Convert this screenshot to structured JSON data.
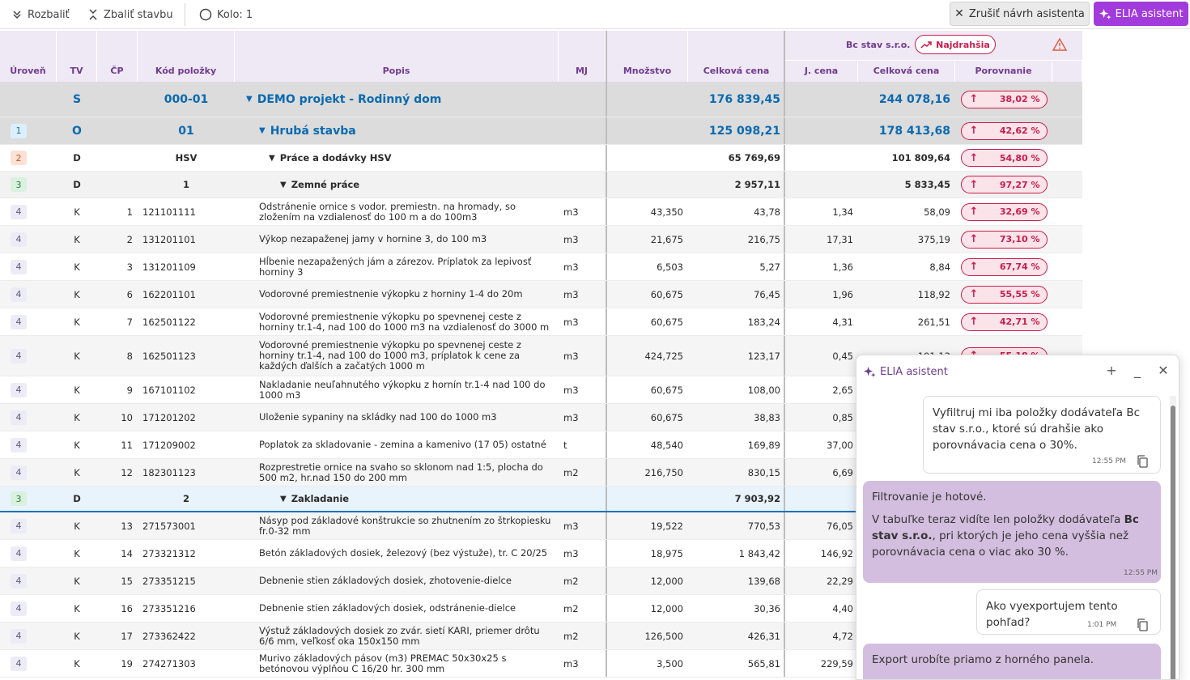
{
  "toolbar": {
    "expand_label": "Rozbaliť",
    "collapse_label": "Zbaliť stavbu",
    "round_label": "Kolo: 1",
    "cancel_label": "Zrušiť návrh asistenta",
    "elia_label": "ELIA asistent"
  },
  "header": {
    "level": "Úroveň",
    "tv": "TV",
    "cp": "ČP",
    "code": "Kód položky",
    "desc": "Popis",
    "unit": "MJ",
    "qty": "Množstvo",
    "total": "Celková cena",
    "supplier": "Bc stav s.r.o.",
    "top_badge": "Najdrahšia",
    "unit_price": "J. cena",
    "supplier_total": "Celková cena",
    "compare": "Porovnanie"
  },
  "summary_rows": [
    {
      "lvl": "",
      "tv": "S",
      "code": "000-01",
      "desc": "DEMO projekt - Rodinný dom",
      "total": "176 839,45",
      "stotal": "244 078,16",
      "cmp": "38,02 %"
    },
    {
      "lvl": "1",
      "tv": "O",
      "code": "01",
      "desc": "Hrubá stavba",
      "total": "125 098,21",
      "stotal": "178 413,68",
      "cmp": "42,62 %"
    },
    {
      "lvl": "2",
      "tv": "D",
      "code": "HSV",
      "desc": "Práce a dodávky HSV",
      "total": "65 769,69",
      "stotal": "101 809,64",
      "cmp": "54,80 %"
    },
    {
      "lvl": "3",
      "tv": "D",
      "code": "1",
      "desc": "Zemné práce",
      "total": "2 957,11",
      "stotal": "5 833,45",
      "cmp": "97,27 %"
    }
  ],
  "items_a": [
    {
      "lvl": "4",
      "tv": "K",
      "cp": "1",
      "code": "121101111",
      "desc": "Odstránenie ornice s vodor. premiestn. na hromady, so zložením na vzdialenosť do 100 m a do 100m3",
      "unit": "m3",
      "qty": "43,350",
      "total": "43,78",
      "up": "1,34",
      "stotal": "58,09",
      "cmp": "32,69 %"
    },
    {
      "lvl": "4",
      "tv": "K",
      "cp": "2",
      "code": "131201101",
      "desc": "Výkop nezapaženej jamy v hornine 3, do 100 m3",
      "unit": "m3",
      "qty": "21,675",
      "total": "216,75",
      "up": "17,31",
      "stotal": "375,19",
      "cmp": "73,10 %"
    },
    {
      "lvl": "4",
      "tv": "K",
      "cp": "3",
      "code": "131201109",
      "desc": "Hĺbenie nezapažených jám a zárezov. Príplatok za lepivosť horniny 3",
      "unit": "m3",
      "qty": "6,503",
      "total": "5,27",
      "up": "1,36",
      "stotal": "8,84",
      "cmp": "67,74 %"
    },
    {
      "lvl": "4",
      "tv": "K",
      "cp": "6",
      "code": "162201101",
      "desc": "Vodorovné premiestnenie výkopku z horniny 1-4 do 20m",
      "unit": "m3",
      "qty": "60,675",
      "total": "76,45",
      "up": "1,96",
      "stotal": "118,92",
      "cmp": "55,55 %"
    },
    {
      "lvl": "4",
      "tv": "K",
      "cp": "7",
      "code": "162501122",
      "desc": "Vodorovné premiestnenie výkopku po spevnenej ceste z horniny tr.1-4, nad 100 do 1000 m3 na vzdialenosť do 3000 m",
      "unit": "m3",
      "qty": "60,675",
      "total": "183,24",
      "up": "4,31",
      "stotal": "261,51",
      "cmp": "42,71 %"
    },
    {
      "lvl": "4",
      "tv": "K",
      "cp": "8",
      "code": "162501123",
      "desc": "Vodorovné premiestnenie výkopku po spevnenej ceste z horniny tr.1-4, nad 100 do 1000 m3, príplatok k cene za každých ďalších a začatých 1000 m",
      "unit": "m3",
      "qty": "424,725",
      "total": "123,17",
      "up": "0,45",
      "stotal": "191,13",
      "cmp": "55,18 %"
    },
    {
      "lvl": "4",
      "tv": "K",
      "cp": "9",
      "code": "167101102",
      "desc": "Nakladanie neuľahnutého výkopku z hornín tr.1-4 nad 100 do 1000 m3",
      "unit": "m3",
      "qty": "60,675",
      "total": "108,00",
      "up": "2,65",
      "stotal": "",
      "cmp": ""
    },
    {
      "lvl": "4",
      "tv": "K",
      "cp": "10",
      "code": "171201202",
      "desc": "Uloženie sypaniny na skládky nad 100 do 1000 m3",
      "unit": "m3",
      "qty": "60,675",
      "total": "38,83",
      "up": "0,85",
      "stotal": "",
      "cmp": ""
    },
    {
      "lvl": "4",
      "tv": "K",
      "cp": "11",
      "code": "171209002",
      "desc": "Poplatok za skladovanie - zemina a kamenivo (17 05) ostatné",
      "unit": "t",
      "qty": "48,540",
      "total": "169,89",
      "up": "37,00",
      "stotal": "",
      "cmp": ""
    },
    {
      "lvl": "4",
      "tv": "K",
      "cp": "12",
      "code": "182301123",
      "desc": "Rozprestretie ornice na svaho so sklonom nad 1:5, plocha do 500 m2, hr.nad 150 do 200 mm",
      "unit": "m2",
      "qty": "216,750",
      "total": "830,15",
      "up": "6,69",
      "stotal": "",
      "cmp": ""
    }
  ],
  "section2": {
    "lvl": "3",
    "tv": "D",
    "code": "2",
    "desc": "Zakladanie",
    "total": "7 903,92"
  },
  "items_b": [
    {
      "lvl": "4",
      "tv": "K",
      "cp": "13",
      "code": "271573001",
      "desc": "Násyp pod základové konštrukcie so zhutnením zo štrkopiesku fr.0-32 mm",
      "unit": "m3",
      "qty": "19,522",
      "total": "770,53",
      "up": "76,05"
    },
    {
      "lvl": "4",
      "tv": "K",
      "cp": "14",
      "code": "273321312",
      "desc": "Betón základových dosiek, železový (bez výstuže), tr. C 20/25",
      "unit": "m3",
      "qty": "18,975",
      "total": "1 843,42",
      "up": "146,92"
    },
    {
      "lvl": "4",
      "tv": "K",
      "cp": "15",
      "code": "273351215",
      "desc": "Debnenie stien základových dosiek, zhotovenie-dielce",
      "unit": "m2",
      "qty": "12,000",
      "total": "139,68",
      "up": "22,29"
    },
    {
      "lvl": "4",
      "tv": "K",
      "cp": "16",
      "code": "273351216",
      "desc": "Debnenie stien základových dosiek, odstránenie-dielce",
      "unit": "m2",
      "qty": "12,000",
      "total": "30,36",
      "up": "4,40"
    },
    {
      "lvl": "4",
      "tv": "K",
      "cp": "17",
      "code": "273362422",
      "desc": "Výstuž základových dosiek zo zvár. sietí KARI, priemer drôtu 6/6 mm, veľkosť oka 150x150 mm",
      "unit": "m2",
      "qty": "126,500",
      "total": "426,31",
      "up": "4,72"
    },
    {
      "lvl": "4",
      "tv": "K",
      "cp": "19",
      "code": "274271303",
      "desc": "Murivo základových pásov (m3) PREMAC 50x30x25 s betónovou výplňou C 16/20 hr. 300 mm",
      "unit": "m3",
      "qty": "3,500",
      "total": "565,81",
      "up": "229,59"
    }
  ],
  "chat": {
    "title": "ELIA asistent",
    "m1": "Vyfiltruj mi iba položky dodávateľa Bc stav s.r.o., ktoré sú drahšie ako porovnávacia cena o 30%.",
    "m1_time": "12:55 PM",
    "m2_line1": "Filtrovanie je hotové.",
    "m2_line2a": "V tabuľke teraz vidíte len položky dodávateľa ",
    "m2_line2b": "Bc stav s.r.o.",
    "m2_line2c": ", pri ktorých je jeho cena vyššia než porovnávacia cena o viac ako 30 %.",
    "m2_time": "12:55 PM",
    "m3": "Ako vyexportujem tento pohľad?",
    "m3_time": "1:01 PM",
    "m4": "Export urobíte priamo z horného panela."
  },
  "colors": {
    "accent": "#a23bdb",
    "negative": "#c91d4b",
    "link": "#0a6ab0"
  }
}
